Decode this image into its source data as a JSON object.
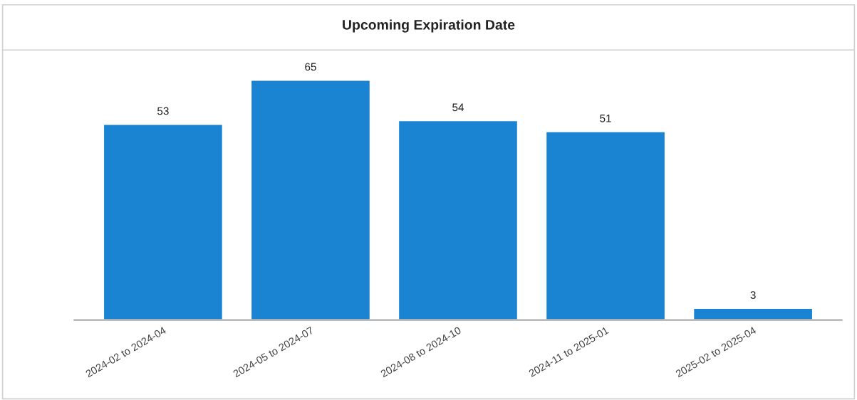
{
  "chart_data": {
    "type": "bar",
    "title": "Upcoming Expiration Date",
    "categories": [
      "2024-02 to 2024-04",
      "2024-05 to 2024-07",
      "2024-08 to 2024-10",
      "2024-11 to 2025-01",
      "2025-02 to 2025-04"
    ],
    "values": [
      53,
      65,
      54,
      51,
      3
    ],
    "color": "#1a84d2",
    "data_labels": true,
    "tick_labels": "x",
    "grid": false,
    "legend": false
  }
}
